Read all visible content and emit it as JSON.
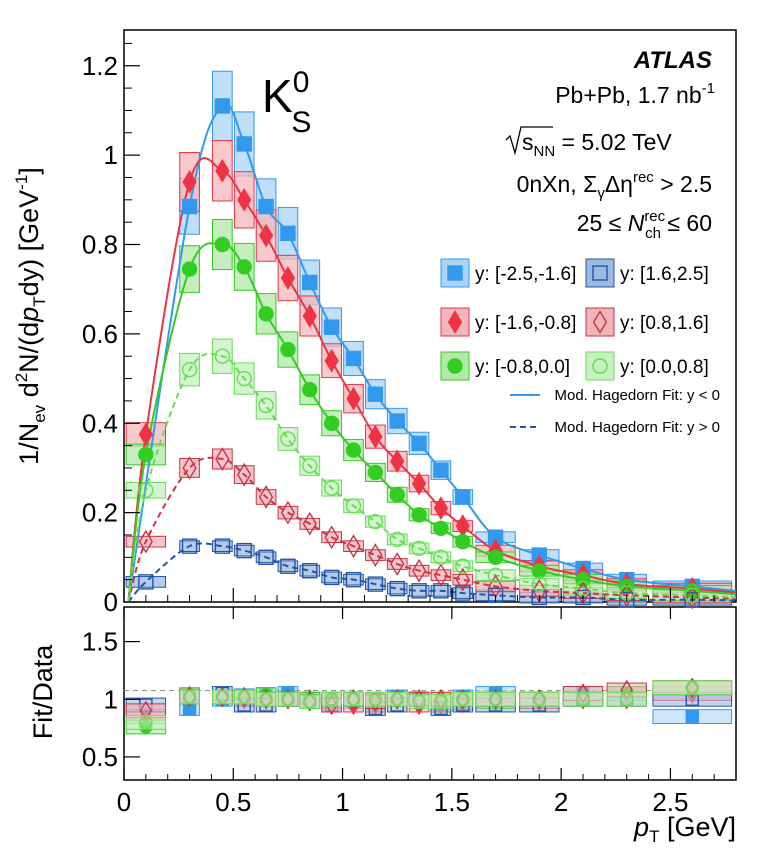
{
  "chart_data": {
    "type": "scatter",
    "experiment": "ATLAS",
    "particle": "K",
    "particle_sup": "0",
    "particle_sub": "S",
    "annotations": {
      "collision": "Pb+Pb, 1.7 nb",
      "collision_sup": "-1",
      "energy_prefix": "s",
      "energy_sub": "NN",
      "energy_value": " = 5.02 TeV",
      "selection_pre": "0nXn, Σ",
      "selection_sub": "γ",
      "selection_mid": "Δη",
      "selection_sup": "rec",
      "selection_post": " > 2.5",
      "nch_pre": "25 ≤ ",
      "nch_var": "N",
      "nch_sup": "rec",
      "nch_sub": "ch",
      "nch_post": " ≤ 60"
    },
    "xlabel_var": "p",
    "xlabel_sub": "T",
    "xlabel_unit": " [GeV]",
    "xlim": [
      0,
      2.8
    ],
    "xticks": [
      "0",
      "0.5",
      "1",
      "1.5",
      "2",
      "2.5"
    ],
    "upper_ylabel": "1/N_ev d²N/(dp_T dy) [GeV⁻¹]",
    "upper_ylabel_parts": {
      "a": "1/N",
      "a_sub": "ev",
      "b": " d",
      "b_sup": "2",
      "c": "N/(d",
      "c_var": "p",
      "c_sub": "T",
      "d": "dy) [GeV",
      "d_sup": "-1",
      "e": "]"
    },
    "upper_ylim": [
      0,
      1.28
    ],
    "upper_yticks": [
      "0",
      "0.2",
      "0.4",
      "0.6",
      "0.8",
      "1",
      "1.2"
    ],
    "lower_ylabel": "Fit/Data",
    "lower_ylim": [
      0.3,
      1.8
    ],
    "lower_yticks": [
      "0.5",
      "1",
      "1.5"
    ],
    "series": [
      {
        "name": "y: [-2.5,-1.6]",
        "color": "#3399ee",
        "box": "#aad3f5",
        "marker": "square-filled",
        "x": [
          0.3,
          0.45,
          0.55,
          0.65,
          0.75,
          0.85,
          0.95,
          1.05,
          1.15,
          1.25,
          1.35,
          1.45,
          1.55,
          1.7,
          1.9,
          2.1,
          2.3,
          2.6
        ],
        "y": [
          0.885,
          1.11,
          1.025,
          0.885,
          0.825,
          0.715,
          0.615,
          0.545,
          0.465,
          0.405,
          0.355,
          0.295,
          0.235,
          0.145,
          0.105,
          0.075,
          0.05,
          0.035
        ],
        "ratio": [
          0.92,
          1.0,
          1.03,
          1.04,
          1.05,
          1.0,
          1.0,
          0.98,
          1.0,
          1.02,
          1.0,
          0.95,
          1.02,
          1.05,
          1.0,
          1.05,
          1.05,
          0.85
        ]
      },
      {
        "name": "y: [-1.6,-0.8]",
        "color": "#ee3344",
        "box": "#f3b7bb",
        "marker": "diamond-filled",
        "x": [
          0.1,
          0.3,
          0.45,
          0.55,
          0.65,
          0.75,
          0.85,
          0.95,
          1.05,
          1.15,
          1.25,
          1.35,
          1.45,
          1.55,
          1.7,
          1.9,
          2.1,
          2.3,
          2.6
        ],
        "y": [
          0.375,
          0.94,
          0.965,
          0.9,
          0.82,
          0.725,
          0.64,
          0.54,
          0.455,
          0.37,
          0.315,
          0.265,
          0.21,
          0.17,
          0.115,
          0.08,
          0.06,
          0.04,
          0.03
        ],
        "ratio": [
          0.85,
          1.03,
          1.02,
          1.0,
          1.0,
          1.0,
          1.0,
          0.98,
          0.95,
          0.95,
          1.0,
          0.95,
          0.95,
          0.97,
          0.98,
          0.98,
          1.0,
          1.0,
          1.05
        ]
      },
      {
        "name": "y: [-0.8,0.0]",
        "color": "#33cc22",
        "box": "#b2e8aa",
        "marker": "circle-filled",
        "x": [
          0.1,
          0.3,
          0.45,
          0.55,
          0.65,
          0.75,
          0.85,
          0.95,
          1.05,
          1.15,
          1.25,
          1.35,
          1.45,
          1.55,
          1.7,
          1.9,
          2.1,
          2.3,
          2.6
        ],
        "y": [
          0.33,
          0.745,
          0.8,
          0.75,
          0.645,
          0.565,
          0.475,
          0.4,
          0.34,
          0.29,
          0.24,
          0.195,
          0.165,
          0.135,
          0.1,
          0.07,
          0.05,
          0.035,
          0.025
        ],
        "ratio": [
          0.76,
          1.04,
          1.02,
          1.02,
          1.04,
          1.0,
          1.0,
          1.0,
          1.0,
          0.99,
          1.0,
          1.0,
          1.0,
          1.0,
          0.98,
          1.0,
          1.0,
          1.05,
          1.1
        ]
      },
      {
        "name": "y: [1.6,2.5]",
        "color": "#2255aa",
        "box": "#9cb9df",
        "marker": "square-open",
        "x": [
          0.1,
          0.3,
          0.45,
          0.55,
          0.65,
          0.75,
          0.85,
          0.95,
          1.05,
          1.15,
          1.25,
          1.35,
          1.45,
          1.55,
          1.7,
          1.9,
          2.1,
          2.3,
          2.6
        ],
        "y": [
          0.045,
          0.125,
          0.125,
          0.115,
          0.1,
          0.08,
          0.07,
          0.055,
          0.05,
          0.04,
          0.03,
          0.025,
          0.025,
          0.02,
          0.015,
          0.01,
          0.01,
          0.005,
          0.005
        ],
        "ratio": [
          0.95,
          1.02,
          1.05,
          0.95,
          0.95,
          1.0,
          0.98,
          0.95,
          1.0,
          0.92,
          0.95,
          1.0,
          0.92,
          0.95,
          0.95,
          0.95,
          1.0,
          1.0,
          1.0
        ]
      },
      {
        "name": "y: [0.8,1.6]",
        "color": "#cc3344",
        "box": "#f0b3b8",
        "marker": "diamond-open",
        "x": [
          0.1,
          0.3,
          0.45,
          0.55,
          0.65,
          0.75,
          0.85,
          0.95,
          1.05,
          1.15,
          1.25,
          1.35,
          1.45,
          1.55,
          1.7,
          1.9,
          2.1,
          2.3,
          2.6
        ],
        "y": [
          0.135,
          0.3,
          0.32,
          0.285,
          0.235,
          0.2,
          0.175,
          0.145,
          0.125,
          0.105,
          0.085,
          0.07,
          0.06,
          0.05,
          0.035,
          0.025,
          0.02,
          0.015,
          0.01
        ],
        "ratio": [
          0.9,
          1.02,
          1.02,
          1.02,
          1.0,
          1.0,
          0.98,
          0.95,
          1.0,
          0.98,
          1.0,
          1.0,
          1.0,
          1.0,
          1.0,
          1.0,
          1.05,
          1.08,
          1.1
        ]
      },
      {
        "name": "y: [0.0,0.8]",
        "color": "#66dd55",
        "box": "#c6f0bf",
        "marker": "circle-open",
        "x": [
          0.1,
          0.3,
          0.45,
          0.55,
          0.65,
          0.75,
          0.85,
          0.95,
          1.05,
          1.15,
          1.25,
          1.35,
          1.45,
          1.55,
          1.7,
          1.9,
          2.1,
          2.3,
          2.6
        ],
        "y": [
          0.25,
          0.52,
          0.55,
          0.5,
          0.44,
          0.365,
          0.305,
          0.255,
          0.215,
          0.18,
          0.14,
          0.12,
          0.1,
          0.08,
          0.06,
          0.04,
          0.03,
          0.02,
          0.015
        ],
        "ratio": [
          0.8,
          1.02,
          1.02,
          1.02,
          1.0,
          1.0,
          0.98,
          1.0,
          1.0,
          1.0,
          1.0,
          0.98,
          0.98,
          1.0,
          1.0,
          1.0,
          1.0,
          1.0,
          1.1
        ]
      }
    ],
    "fits": [
      {
        "name": "Mod. Hagedorn Fit: y < 0",
        "style": "solid",
        "color": "#3399ee"
      },
      {
        "name": "Mod. Hagedorn Fit: y > 0",
        "style": "dashed",
        "color": "#2255aa"
      }
    ],
    "legend_position": "top-right"
  }
}
